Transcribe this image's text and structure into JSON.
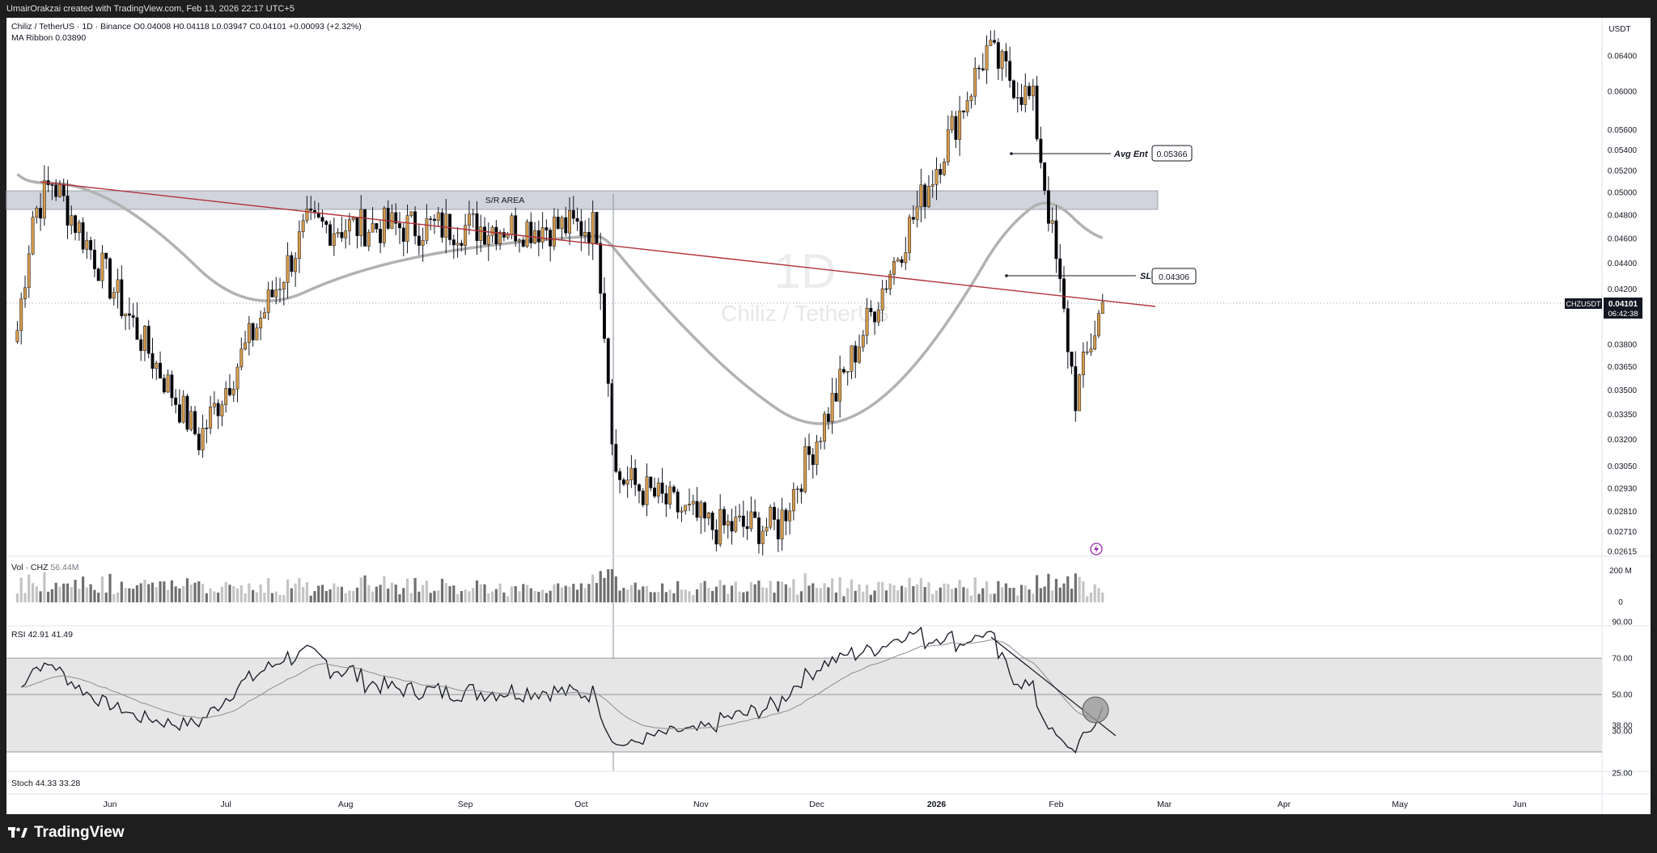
{
  "header": {
    "attribution": "UmairOrakzai created with TradingView.com, Feb 13, 2026 22:17 UTC+5"
  },
  "symbol_legend": {
    "title": "Chiliz / TetherUS · 1D · Binance",
    "ohlc": "O0.04008 H0.04118 L0.03947 C0.04101 +0.00093 (+2.32%)",
    "indicator": "MA Ribbon 0.03890"
  },
  "watermark": {
    "interval": "1D",
    "name": "Chiliz / TetherUS"
  },
  "currency": "USDT",
  "price_tag": {
    "symbol": "CHZUSDT",
    "price": "0.04101",
    "countdown": "06:42:38"
  },
  "annotations": {
    "sr_area": "S/R AREA",
    "avg_entry": {
      "label": "Avg Ent",
      "value": "0.05366"
    },
    "stop_loss": {
      "label": "SL",
      "value": "0.04306"
    }
  },
  "volume_legend": {
    "label": "Vol · CHZ",
    "value": "56.44M"
  },
  "rsi_legend": {
    "label": "RSI",
    "value": "42.91",
    "ma_value": "41.49"
  },
  "stoch_legend": {
    "label": "Stoch",
    "k": "44.33",
    "d": "33.28"
  },
  "branding": {
    "name": "TradingView"
  },
  "colors": {
    "up": "#d59a4a",
    "down": "#000000",
    "ma": "#b2b2b2",
    "trendline": "#b2323a",
    "sr_zone": "#d1d4dc",
    "rsi_band": "#e6e6e6",
    "background": "#ffffff"
  },
  "chart_data": [
    {
      "type": "candlestick",
      "title": "Chiliz / TetherUS · 1D · Binance",
      "scale": "log",
      "y_ticks": [
        "0.06400",
        "0.06000",
        "0.05600",
        "0.05400",
        "0.05200",
        "0.05000",
        "0.04800",
        "0.04600",
        "0.04400",
        "0.04200",
        "0.03800",
        "0.03650",
        "0.03500",
        "0.03350",
        "0.03200",
        "0.03050",
        "0.02930",
        "0.02810",
        "0.02710",
        "0.02615"
      ],
      "x_ticks": [
        "Jun",
        "Jul",
        "Aug",
        "Sep",
        "Oct",
        "Nov",
        "Dec",
        "2026",
        "Feb",
        "Mar",
        "Apr",
        "May",
        "Jun"
      ],
      "period": {
        "start": "2025-05-08",
        "end": "2026-02-13"
      },
      "key_points": [
        {
          "date": "2025-05-17",
          "price": 0.051,
          "note": "local high"
        },
        {
          "date": "2025-06-24",
          "price": 0.032,
          "note": "local low"
        },
        {
          "date": "2025-07-22",
          "price": 0.047,
          "note": "local high"
        },
        {
          "date": "2025-10-05",
          "price": 0.047,
          "note": "local high"
        },
        {
          "date": "2025-10-10",
          "price": 0.03,
          "note": "crash wick"
        },
        {
          "date": "2025-11-04",
          "price": 0.0273,
          "note": "local low"
        },
        {
          "date": "2025-11-21",
          "price": 0.0274,
          "note": "local low"
        },
        {
          "date": "2026-01-14",
          "price": 0.0646,
          "note": "cycle high"
        },
        {
          "date": "2026-01-26",
          "price": 0.0587,
          "note": "lower high"
        },
        {
          "date": "2026-02-06",
          "price": 0.0346,
          "note": "wick low"
        },
        {
          "date": "2026-02-13",
          "price": 0.04101,
          "note": "last close"
        }
      ],
      "ma_ribbon": {
        "last": 0.0389
      },
      "levels": {
        "avg_entry": 0.05366,
        "stop_loss": 0.04306,
        "sr_zone": [
          0.049,
          0.0506
        ]
      }
    },
    {
      "type": "bar",
      "title": "Vol · CHZ",
      "last": "56.44M",
      "y_ticks": [
        "200 M",
        "0"
      ]
    },
    {
      "type": "line",
      "title": "RSI",
      "last": 42.91,
      "ma_last": 41.49,
      "y_ticks": [
        "90.00",
        "70.00",
        "50.00",
        "38.00",
        "30.00",
        "25.00"
      ],
      "bands": [
        30,
        70
      ]
    },
    {
      "type": "line",
      "title": "Stoch",
      "k": 44.33,
      "d": 33.28
    }
  ]
}
